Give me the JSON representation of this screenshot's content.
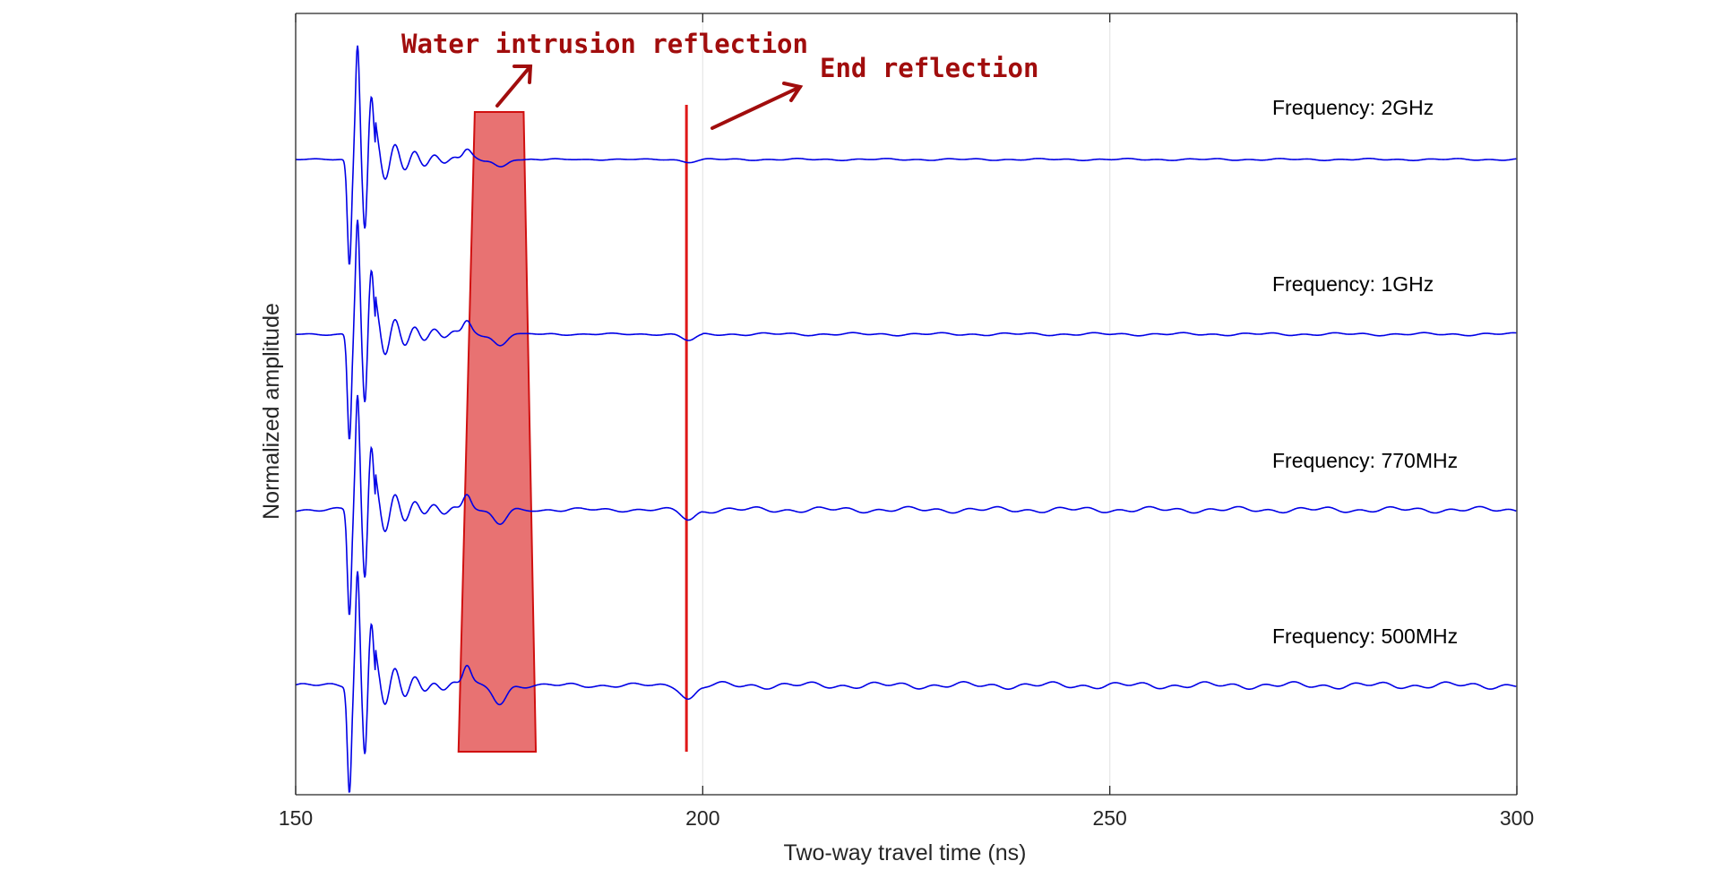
{
  "chart_data": {
    "type": "line",
    "title": "",
    "xlabel": "Two-way travel time (ns)",
    "ylabel": "Normalized amplitude",
    "xlim": [
      150,
      300
    ],
    "xticks": [
      150,
      200,
      250,
      300
    ],
    "xtick_labels": [
      "150",
      "200",
      "250",
      "300"
    ],
    "ytick_labels_shown": false,
    "grid": "vertical",
    "series": [
      {
        "name": "Frequency: 2GHz",
        "label": "Frequency: 2GHz",
        "color": "#0000e6",
        "ripple": 0.02
      },
      {
        "name": "Frequency: 1GHz",
        "label": "Frequency: 1GHz",
        "color": "#0000e6",
        "ripple": 0.03
      },
      {
        "name": "Frequency: 770MHz",
        "label": "Frequency: 770MHz",
        "color": "#0000e6",
        "ripple": 0.06
      },
      {
        "name": "Frequency: 500MHz",
        "label": "Frequency: 500MHz",
        "color": "#0000e6",
        "ripple": 0.07
      }
    ],
    "highlight_region": {
      "x_top": [
        172,
        178
      ],
      "x_bottom": [
        170,
        179.5
      ],
      "fill": "#e87272",
      "stroke": "#d01010"
    },
    "marker_line": {
      "x": 198,
      "color": "#e01818"
    },
    "annotations": [
      {
        "text": "Water intrusion reflection",
        "color": "#a10d0d",
        "points_at": "highlight_region"
      },
      {
        "text": "End reflection",
        "color": "#a10d0d",
        "points_at": "marker_line"
      }
    ]
  }
}
